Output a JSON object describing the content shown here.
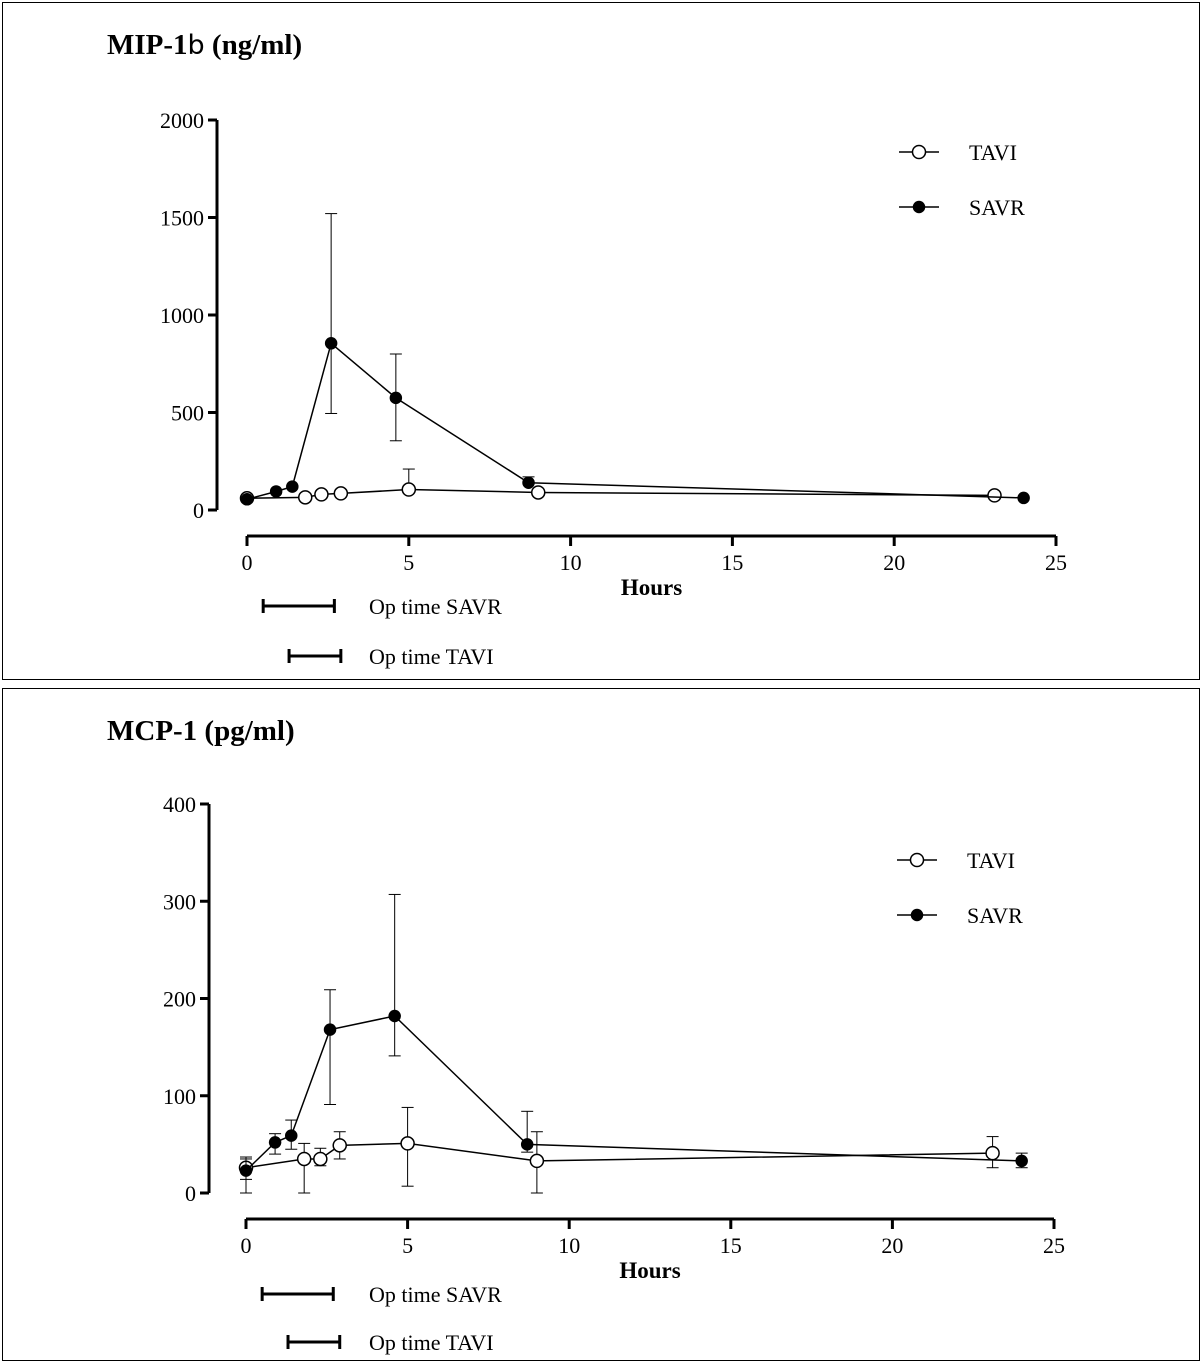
{
  "chart_data": [
    {
      "type": "line",
      "title_main": "MIP-1",
      "title_greek": "b",
      "title_unit": "(ng/ml)",
      "xlabel": "Hours",
      "ylabel": "",
      "xlim": [
        0,
        25
      ],
      "ylim": [
        0,
        2000
      ],
      "xticks": [
        0,
        5,
        10,
        15,
        20,
        25
      ],
      "yticks": [
        0,
        500,
        1000,
        1500,
        2000
      ],
      "legend_position": "top-right",
      "series": [
        {
          "name": "TAVI",
          "marker": "open-circle",
          "points": [
            {
              "x": 0,
              "y": 60
            },
            {
              "x": 1.8,
              "y": 65
            },
            {
              "x": 2.3,
              "y": 80
            },
            {
              "x": 2.9,
              "y": 85
            },
            {
              "x": 5.0,
              "y": 105,
              "err_high": 210
            },
            {
              "x": 9.0,
              "y": 90
            },
            {
              "x": 23.1,
              "y": 75
            }
          ]
        },
        {
          "name": "SAVR",
          "marker": "filled-circle",
          "points": [
            {
              "x": 0,
              "y": 55
            },
            {
              "x": 0.9,
              "y": 95
            },
            {
              "x": 1.4,
              "y": 120
            },
            {
              "x": 2.6,
              "y": 855,
              "err_low": 495,
              "err_high": 1520
            },
            {
              "x": 4.6,
              "y": 575,
              "err_low": 355,
              "err_high": 800
            },
            {
              "x": 8.7,
              "y": 140,
              "err_high": 170
            },
            {
              "x": 24.0,
              "y": 62
            }
          ]
        }
      ],
      "op_time_bars": [
        {
          "label": "Op time SAVR",
          "x_start": 0.5,
          "x_end": 2.7
        },
        {
          "label": "Op time TAVI",
          "x_start": 1.3,
          "x_end": 2.9
        }
      ]
    },
    {
      "type": "line",
      "title_main": "MCP-1 (pg/ml)",
      "xlabel": "Hours",
      "ylabel": "",
      "xlim": [
        0,
        25
      ],
      "ylim": [
        0,
        400
      ],
      "xticks": [
        0,
        5,
        10,
        15,
        20,
        25
      ],
      "yticks": [
        0,
        100,
        200,
        300,
        400
      ],
      "legend_position": "top-right",
      "series": [
        {
          "name": "TAVI",
          "marker": "open-circle",
          "points": [
            {
              "x": 0,
              "y": 26,
              "err_low": 14,
              "err_high": 37
            },
            {
              "x": 1.8,
              "y": 35,
              "err_low": 0,
              "err_high": 51
            },
            {
              "x": 2.3,
              "y": 35,
              "err_low": 28,
              "err_high": 46
            },
            {
              "x": 2.9,
              "y": 49,
              "err_low": 35,
              "err_high": 63
            },
            {
              "x": 5.0,
              "y": 51,
              "err_low": 7,
              "err_high": 88
            },
            {
              "x": 9.0,
              "y": 33,
              "err_low": 0,
              "err_high": 63
            },
            {
              "x": 23.1,
              "y": 41,
              "err_low": 26,
              "err_high": 58
            }
          ]
        },
        {
          "name": "SAVR",
          "marker": "filled-circle",
          "points": [
            {
              "x": 0,
              "y": 23,
              "err_low": 0,
              "err_high": 35
            },
            {
              "x": 0.9,
              "y": 52,
              "err_low": 40,
              "err_high": 61
            },
            {
              "x": 1.4,
              "y": 59,
              "err_low": 45,
              "err_high": 75
            },
            {
              "x": 2.6,
              "y": 168,
              "err_low": 91,
              "err_high": 209
            },
            {
              "x": 4.6,
              "y": 182,
              "err_low": 141,
              "err_high": 307
            },
            {
              "x": 8.7,
              "y": 50,
              "err_low": 42,
              "err_high": 84
            },
            {
              "x": 24.0,
              "y": 33,
              "err_low": 26,
              "err_high": 41
            }
          ]
        }
      ],
      "op_time_bars": [
        {
          "label": "Op time SAVR",
          "x_start": 0.5,
          "x_end": 2.7
        },
        {
          "label": "Op time TAVI",
          "x_start": 1.3,
          "x_end": 2.9
        }
      ]
    }
  ]
}
